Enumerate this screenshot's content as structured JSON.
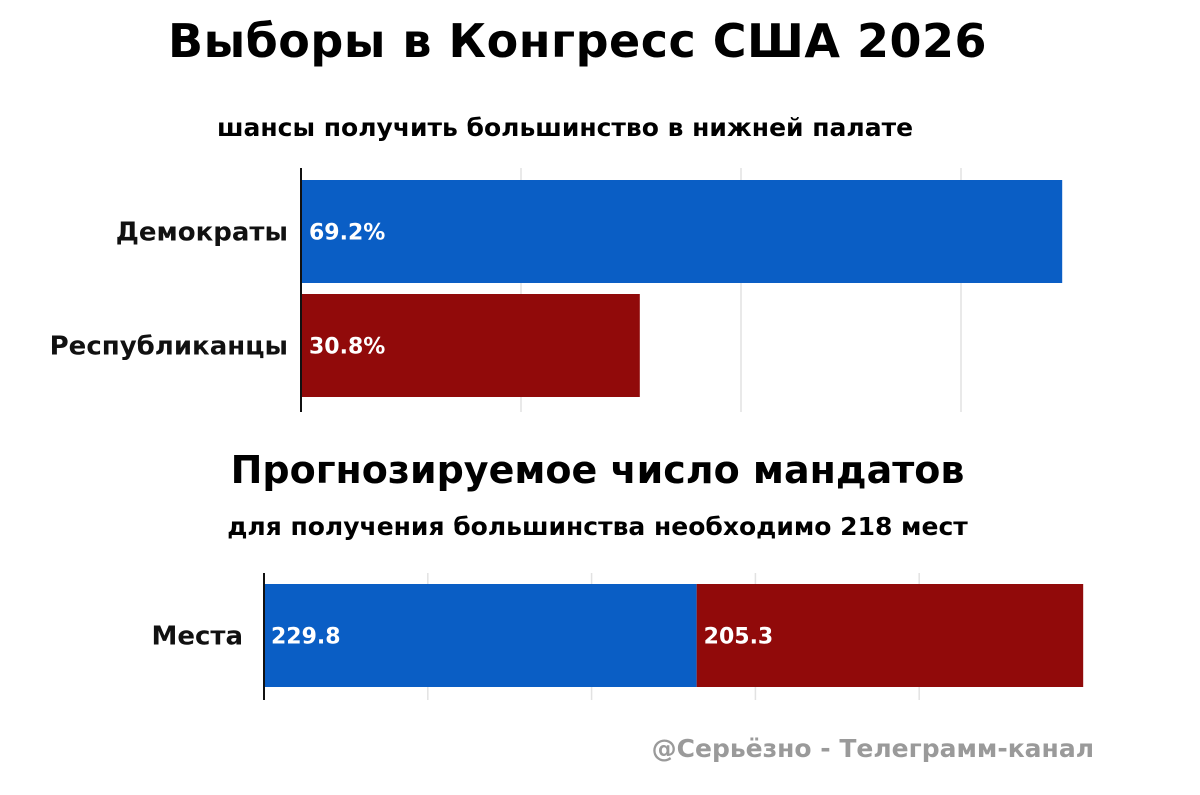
{
  "title": "Выборы в Конгресс США 2026",
  "colors": {
    "dem": "#0a5ec5",
    "rep": "#910a0a",
    "grid": "#e2e2e2",
    "axis": "#111111"
  },
  "footer": "@Серьёзно - Телеграмм-канал",
  "chart_data": [
    {
      "type": "bar",
      "orientation": "horizontal",
      "title": "шансы получить большинство в нижней палате",
      "categories": [
        "Демократы",
        "Республиканцы"
      ],
      "values": [
        69.2,
        30.8
      ],
      "value_labels": [
        "69.2%",
        "30.8%"
      ],
      "xlim": [
        0,
        75
      ],
      "grid": true
    },
    {
      "type": "bar",
      "orientation": "horizontal",
      "stacked": true,
      "title": "Прогнозируемое число мандатов",
      "subtitle": "для получения большинства необходимо 218 мест",
      "categories": [
        "Места"
      ],
      "series": [
        {
          "values": [
            229.8
          ],
          "value_labels": [
            "229.8"
          ]
        },
        {
          "values": [
            205.3
          ],
          "value_labels": [
            "205.3"
          ]
        }
      ],
      "xlim": [
        0,
        435
      ],
      "grid": true
    }
  ]
}
